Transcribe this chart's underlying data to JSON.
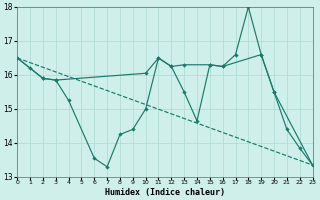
{
  "title": "",
  "xlabel": "Humidex (Indice chaleur)",
  "bg_color": "#cff0ea",
  "grid_color": "#b0ddd5",
  "line_color": "#1a7a6a",
  "xlim": [
    0,
    23
  ],
  "ylim": [
    13,
    18
  ],
  "yticks": [
    13,
    14,
    15,
    16,
    17,
    18
  ],
  "xticks": [
    0,
    1,
    2,
    3,
    4,
    5,
    6,
    7,
    8,
    9,
    10,
    11,
    12,
    13,
    14,
    15,
    16,
    17,
    18,
    19,
    20,
    21,
    22,
    23
  ],
  "line1_x": [
    0,
    1,
    2,
    3,
    4,
    6,
    7,
    8,
    9,
    10,
    11,
    12,
    13,
    14,
    15,
    16,
    17,
    18,
    19,
    20,
    21,
    22,
    23
  ],
  "line1_y": [
    16.5,
    16.2,
    15.9,
    15.85,
    15.25,
    13.55,
    13.3,
    14.25,
    14.4,
    15.0,
    16.5,
    16.25,
    15.5,
    14.65,
    16.3,
    16.25,
    16.6,
    18.0,
    16.6,
    15.5,
    14.4,
    13.85,
    13.35
  ],
  "line2_x": [
    0,
    2,
    3,
    10,
    11,
    12,
    13,
    15,
    16,
    19,
    20,
    23
  ],
  "line2_y": [
    16.5,
    15.9,
    15.85,
    16.05,
    16.5,
    16.25,
    16.3,
    16.3,
    16.25,
    16.6,
    15.5,
    13.35
  ],
  "line3_x": [
    0,
    23
  ],
  "line3_y": [
    16.5,
    13.35
  ],
  "marker": "D",
  "markersize": 2.2,
  "linewidth": 0.85
}
